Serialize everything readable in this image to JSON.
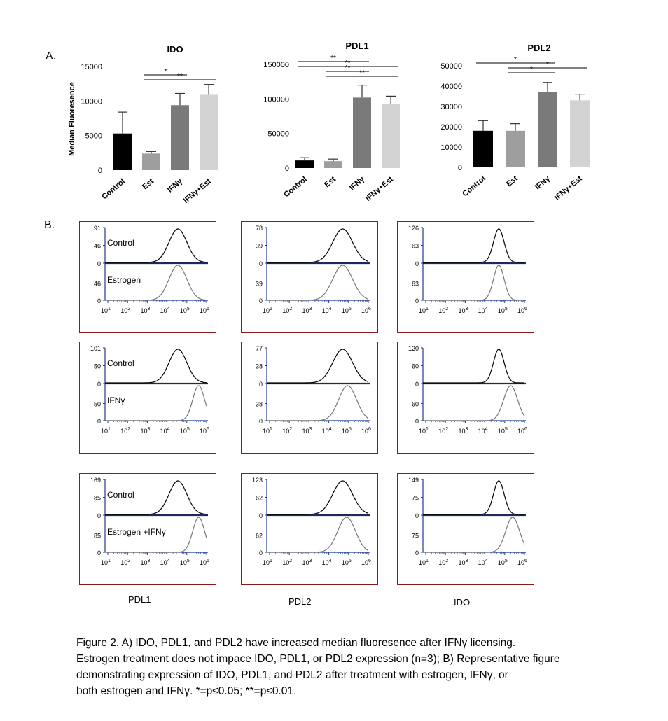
{
  "panel_a_label": "A.",
  "panel_b_label": "B.",
  "ylabel": "Median Fluoresence",
  "chart_data": [
    {
      "type": "bar",
      "title": "IDO",
      "categories": [
        "Control",
        "Est",
        "IFNγ",
        "IFNγ+Est"
      ],
      "values": [
        5300,
        2400,
        9400,
        10900
      ],
      "errors": [
        3100,
        300,
        1700,
        1500
      ],
      "colors": [
        "#000000",
        "#9e9e9e",
        "#7a7a7a",
        "#d3d3d3"
      ],
      "ylim": [
        0,
        15000
      ],
      "yticks": [
        "0",
        "5000",
        "10000",
        "15000"
      ],
      "ytick_values": [
        0,
        5000,
        10000,
        15000
      ],
      "ylabel": "Median Fluoresence",
      "significance": [
        {
          "from": 1,
          "to": 2,
          "label": "*"
        },
        {
          "from": 1,
          "to": 3,
          "label": "**"
        }
      ]
    },
    {
      "type": "bar",
      "title": "PDL1",
      "categories": [
        "Control",
        "Est",
        "IFNγ",
        "IFNγ+Est"
      ],
      "values": [
        11000,
        10000,
        102000,
        93000
      ],
      "errors": [
        4000,
        3000,
        18000,
        11000
      ],
      "colors": [
        "#000000",
        "#9e9e9e",
        "#7a7a7a",
        "#d3d3d3"
      ],
      "ylim": [
        0,
        150000
      ],
      "yticks": [
        "0",
        "50000",
        "100000",
        "150000"
      ],
      "ytick_values": [
        0,
        50000,
        100000,
        150000
      ],
      "ylabel": "",
      "significance": [
        {
          "from": 0,
          "to": 2,
          "label": "**"
        },
        {
          "from": 0,
          "to": 3,
          "label": "**"
        },
        {
          "from": 1,
          "to": 2,
          "label": "**"
        },
        {
          "from": 1,
          "to": 3,
          "label": "**"
        }
      ]
    },
    {
      "type": "bar",
      "title": "PDL2",
      "categories": [
        "Control",
        "Est",
        "IFNγ",
        "IFNγ+Est"
      ],
      "values": [
        18000,
        18000,
        37000,
        33000
      ],
      "errors": [
        5000,
        3500,
        4800,
        3000
      ],
      "colors": [
        "#000000",
        "#9e9e9e",
        "#7a7a7a",
        "#d3d3d3"
      ],
      "ylim": [
        0,
        50000
      ],
      "yticks": [
        "0",
        "10000",
        "20000",
        "30000",
        "40000",
        "50000"
      ],
      "ytick_values": [
        0,
        10000,
        20000,
        30000,
        40000,
        50000
      ],
      "ylabel": "",
      "significance": [
        {
          "from": 0,
          "to": 2,
          "label": "*"
        },
        {
          "from": 1,
          "to": 3,
          "label": "*"
        },
        {
          "from": 1,
          "to": 2,
          "label": "*"
        }
      ]
    }
  ],
  "histograms": {
    "x_ticks": [
      "1",
      "2",
      "3",
      "4",
      "5",
      "6"
    ],
    "x_base": "10",
    "rows": [
      {
        "treatment_label": "Estrogen",
        "control_label": "Control",
        "panels": [
          {
            "marker": "PDL1",
            "ytop_upper": "91",
            "ymid_upper": "46",
            "ytop_lower": "46",
            "zero": "0",
            "ctrl_peak_log": 4.55,
            "ctrl_width": 0.45,
            "trt_peak_log": 4.55,
            "trt_width": 0.45
          },
          {
            "marker": "PDL2",
            "ytop_upper": "78",
            "ymid_upper": "39",
            "ytop_lower": "39",
            "zero": "0",
            "ctrl_peak_log": 4.7,
            "ctrl_width": 0.5,
            "trt_peak_log": 4.7,
            "trt_width": 0.5
          },
          {
            "marker": "IDO",
            "ytop_upper": "126",
            "ymid_upper": "63",
            "ytop_lower": "63",
            "zero": "0",
            "ctrl_peak_log": 4.7,
            "ctrl_width": 0.27,
            "trt_peak_log": 4.7,
            "trt_width": 0.27
          }
        ]
      },
      {
        "treatment_label": "IFNγ",
        "control_label": "Control",
        "panels": [
          {
            "marker": "PDL1",
            "ytop_upper": "101",
            "ymid_upper": "50",
            "ytop_lower": "50",
            "zero": "0",
            "ctrl_peak_log": 4.55,
            "ctrl_width": 0.45,
            "trt_peak_log": 5.6,
            "trt_width": 0.3
          },
          {
            "marker": "PDL2",
            "ytop_upper": "77",
            "ymid_upper": "38",
            "ytop_lower": "38",
            "zero": "0",
            "ctrl_peak_log": 4.7,
            "ctrl_width": 0.5,
            "trt_peak_log": 4.95,
            "trt_width": 0.45
          },
          {
            "marker": "IDO",
            "ytop_upper": "120",
            "ymid_upper": "60",
            "ytop_lower": "60",
            "zero": "0",
            "ctrl_peak_log": 4.7,
            "ctrl_width": 0.27,
            "trt_peak_log": 5.3,
            "trt_width": 0.35
          }
        ]
      },
      {
        "treatment_label": "Estrogen +IFNγ",
        "control_label": "Control",
        "panels": [
          {
            "marker": "PDL1",
            "ytop_upper": "169",
            "ymid_upper": "85",
            "ytop_lower": "85",
            "zero": "0",
            "ctrl_peak_log": 4.55,
            "ctrl_width": 0.45,
            "trt_peak_log": 5.6,
            "trt_width": 0.3
          },
          {
            "marker": "PDL2",
            "ytop_upper": "123",
            "ymid_upper": "62",
            "ytop_lower": "62",
            "zero": "0",
            "ctrl_peak_log": 4.7,
            "ctrl_width": 0.5,
            "trt_peak_log": 4.9,
            "trt_width": 0.45
          },
          {
            "marker": "IDO",
            "ytop_upper": "149",
            "ymid_upper": "75",
            "ytop_lower": "75",
            "zero": "0",
            "ctrl_peak_log": 4.7,
            "ctrl_width": 0.27,
            "trt_peak_log": 5.4,
            "trt_width": 0.35
          }
        ]
      }
    ],
    "column_labels": [
      "PDL1",
      "PDL2",
      "IDO"
    ]
  },
  "caption": {
    "line1": "Figure 2. A) IDO, PDL1, and PDL2 have increased median fluoresence after IFNγ licensing.",
    "line2": "Estrogen treatment does not impace IDO, PDL1, or PDL2 expression (n=3); B) Representative figure",
    "line3": "demonstrating expression of  IDO, PDL1, and PDL2 after treatment with estrogen, IFNγ, or",
    "line4": "both estrogen and IFNγ. *=p≤0.05; **=p≤0.01."
  },
  "colors": {
    "box_border": "#8b1a1a",
    "axis_blue": "#1f3b8c",
    "baseline": "#1a2a5a"
  }
}
